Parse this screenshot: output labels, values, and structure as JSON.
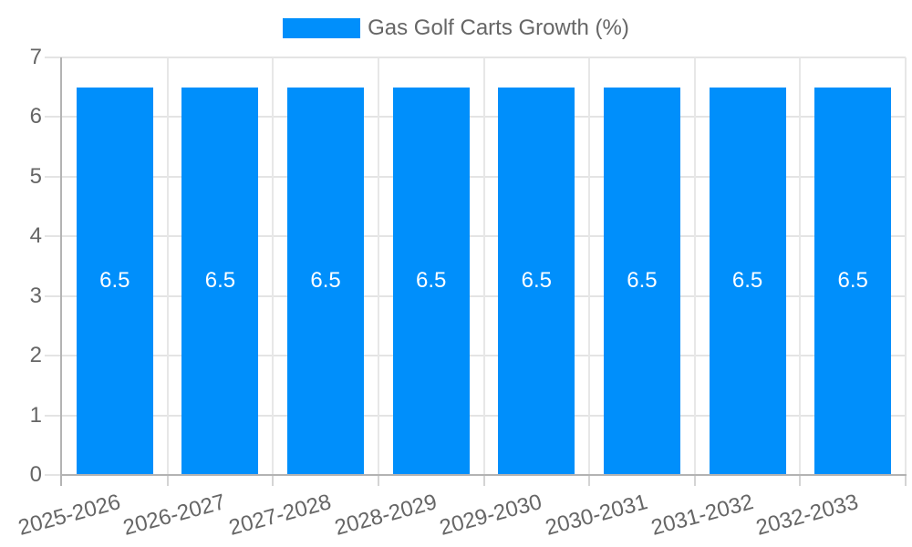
{
  "chart_data": {
    "type": "bar",
    "title": "",
    "legend": "Gas Golf Carts Growth (%)",
    "legend_position": "top",
    "categories": [
      "2025-2026",
      "2026-2027",
      "2027-2028",
      "2028-2029",
      "2029-2030",
      "2030-2031",
      "2031-2032",
      "2032-2033"
    ],
    "values": [
      6.5,
      6.5,
      6.5,
      6.5,
      6.5,
      6.5,
      6.5,
      6.5
    ],
    "value_labels": [
      "6.5",
      "6.5",
      "6.5",
      "6.5",
      "6.5",
      "6.5",
      "6.5",
      "6.5"
    ],
    "xlabel": "",
    "ylabel": "",
    "ylim": [
      0,
      7
    ],
    "ytick_step": 1,
    "ytick_labels": [
      "0",
      "1",
      "2",
      "3",
      "4",
      "5",
      "6",
      "7"
    ],
    "x_label_rotation_deg": -15,
    "grid": true,
    "colors": {
      "bar": "#008FFB",
      "bar_value_text": "#ffffff",
      "axis_text": "#666666",
      "legend_text": "#666666",
      "gridline": "#e4e4e4",
      "axis_line": "#b3b3b3",
      "background": "#ffffff"
    }
  }
}
